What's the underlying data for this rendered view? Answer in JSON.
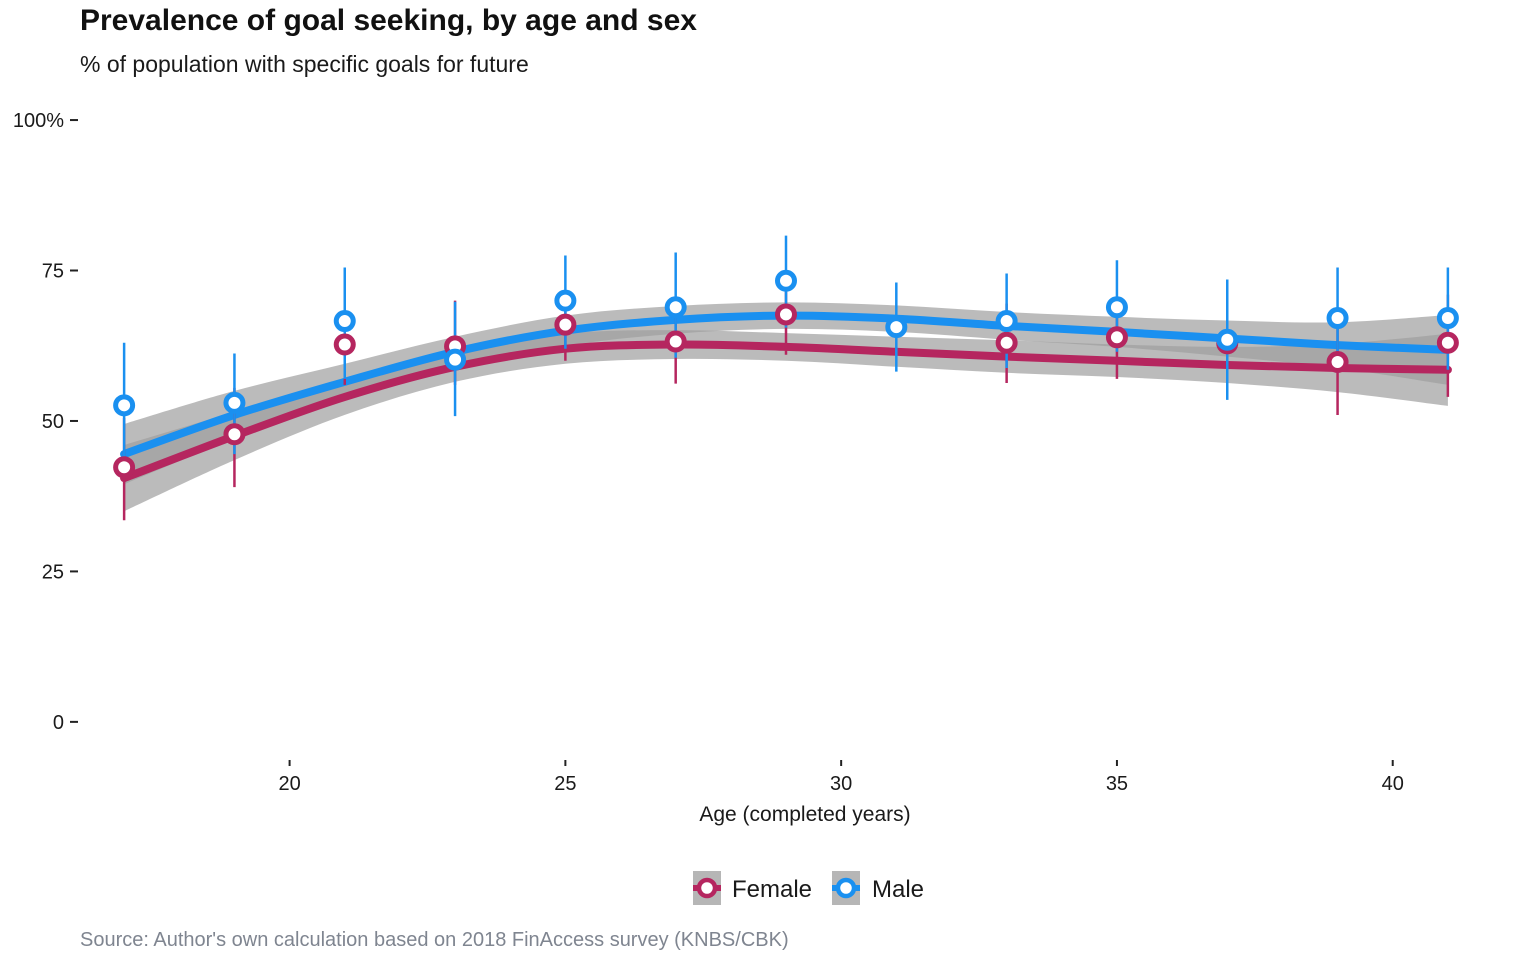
{
  "chart_data": {
    "type": "scatter",
    "title": "Prevalence of goal seeking, by age and sex",
    "subtitle": "% of population with specific goals for future",
    "xlabel": "Age (completed years)",
    "ylabel": "",
    "caption": "Source: Author's own calculation based on 2018 FinAccess survey (KNBS/CBK)",
    "xlim": [
      16.2,
      41.8
    ],
    "ylim": [
      -7,
      103
    ],
    "x_ticks": [
      20,
      25,
      30,
      35,
      40
    ],
    "x_tick_labels": [
      "20",
      "25",
      "30",
      "35",
      "40"
    ],
    "y_ticks": [
      0,
      25,
      50,
      75,
      100
    ],
    "y_tick_labels": [
      "0",
      "25",
      "50",
      "75",
      "100%"
    ],
    "grid": false,
    "legend_position": "bottom",
    "colors": {
      "Female": "#b5265f",
      "Male": "#1a90f0",
      "ribbon": "#9e9e9e"
    },
    "series": [
      {
        "name": "Female",
        "x": [
          17,
          19,
          21,
          23,
          25,
          27,
          29,
          33,
          35,
          37,
          39,
          41
        ],
        "values": [
          42.3,
          47.8,
          62.7,
          62.4,
          66.0,
          63.2,
          67.7,
          63.0,
          63.9,
          62.9,
          59.8,
          63.0
        ],
        "ci_low": [
          33.5,
          39.0,
          56.0,
          56.0,
          60.0,
          56.2,
          61.0,
          56.3,
          57.0,
          55.8,
          51.0,
          54.0
        ],
        "ci_high": [
          50.5,
          55.5,
          68.5,
          70.0,
          71.5,
          69.5,
          74.0,
          69.5,
          70.5,
          69.8,
          68.0,
          71.0
        ],
        "smooth_x": [
          17,
          19,
          21,
          23,
          25,
          27,
          29,
          31,
          33,
          35,
          37,
          39,
          41
        ],
        "smooth_y": [
          40.5,
          47.5,
          54.0,
          59.0,
          62.0,
          62.7,
          62.3,
          61.5,
          60.7,
          60.0,
          59.3,
          58.8,
          58.5
        ],
        "smooth_lo": [
          35.0,
          43.5,
          51.0,
          56.5,
          59.5,
          60.3,
          60.0,
          59.0,
          58.0,
          57.3,
          56.3,
          54.8,
          52.5
        ],
        "smooth_hi": [
          46.0,
          51.5,
          57.0,
          61.5,
          64.5,
          65.1,
          64.6,
          64.0,
          63.4,
          62.7,
          62.3,
          62.8,
          64.5
        ]
      },
      {
        "name": "Male",
        "x": [
          17,
          19,
          21,
          23,
          25,
          27,
          29,
          31,
          33,
          35,
          37,
          39,
          41
        ],
        "values": [
          52.6,
          53.0,
          66.6,
          60.2,
          70.0,
          68.9,
          73.3,
          65.6,
          66.6,
          68.9,
          63.5,
          67.1,
          67.1
        ],
        "ci_low": [
          42.5,
          44.5,
          57.0,
          50.8,
          62.0,
          60.5,
          65.5,
          58.2,
          58.8,
          61.5,
          53.5,
          58.0,
          58.5
        ],
        "ci_high": [
          63.0,
          61.2,
          75.5,
          69.8,
          77.5,
          78.0,
          80.8,
          73.0,
          74.5,
          76.7,
          73.5,
          75.5,
          75.5
        ],
        "smooth_x": [
          17,
          19,
          21,
          23,
          25,
          27,
          29,
          31,
          33,
          35,
          37,
          39,
          41
        ],
        "smooth_y": [
          44.5,
          51.0,
          56.5,
          61.5,
          65.0,
          66.8,
          67.5,
          67.0,
          65.8,
          64.8,
          63.7,
          62.6,
          61.8
        ],
        "smooth_lo": [
          39.5,
          47.0,
          53.5,
          59.0,
          62.5,
          64.5,
          65.3,
          64.8,
          63.5,
          62.3,
          60.7,
          58.8,
          56.0
        ],
        "smooth_hi": [
          49.5,
          55.0,
          59.5,
          64.0,
          67.5,
          69.1,
          69.7,
          69.2,
          68.1,
          67.3,
          66.7,
          66.4,
          67.6
        ]
      }
    ]
  }
}
